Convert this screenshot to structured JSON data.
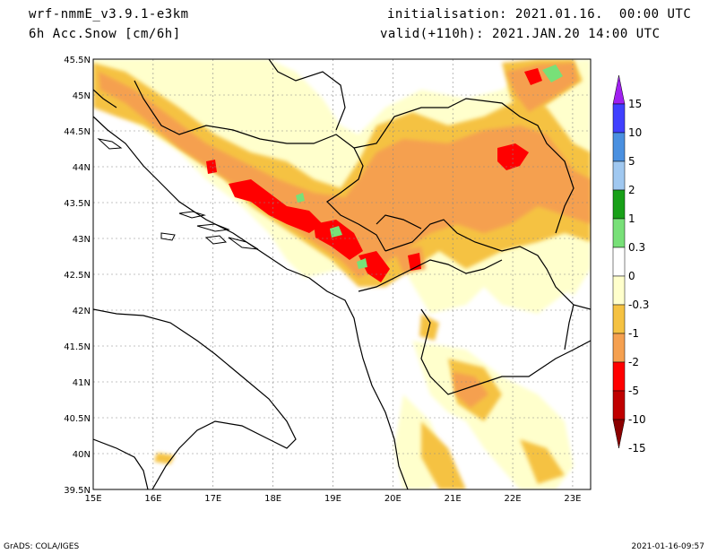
{
  "header": {
    "model": "wrf-nmmE_v3.9.1-e3km",
    "variable": "6h Acc.Snow [cm/6h]",
    "init": "initialisation: 2021.01.16.  00:00 UTC",
    "valid": "valid(+110h): 2021.JAN.20 14:00 UTC"
  },
  "map": {
    "lon_range": [
      15,
      23.3
    ],
    "lat_range": [
      39.5,
      45.5
    ],
    "lon_ticks": [
      "15E",
      "16E",
      "17E",
      "18E",
      "19E",
      "20E",
      "21E",
      "22E",
      "23E"
    ],
    "lat_ticks": [
      "39.5N",
      "40N",
      "40.5N",
      "41N",
      "41.5N",
      "42N",
      "42.5N",
      "43N",
      "43.5N",
      "44N",
      "44.5N",
      "45N",
      "45.5N"
    ],
    "grid": true
  },
  "legend": {
    "labels": [
      "15",
      "10",
      "5",
      "2",
      "1",
      "0.3",
      "0",
      "-0.3",
      "-1",
      "-2",
      "-5",
      "-10",
      "-15"
    ],
    "colors": [
      "#a020f0",
      "#4040ff",
      "#4a90e0",
      "#a0c8f0",
      "#18a018",
      "#78e078",
      "#ffffff",
      "#ffffcc",
      "#f5c242",
      "#f5a050",
      "#ff0000",
      "#c00000",
      "#8b0000"
    ]
  },
  "footer": {
    "left": "GrADS: COLA/IGES",
    "right": "2021-01-16-09:57"
  }
}
